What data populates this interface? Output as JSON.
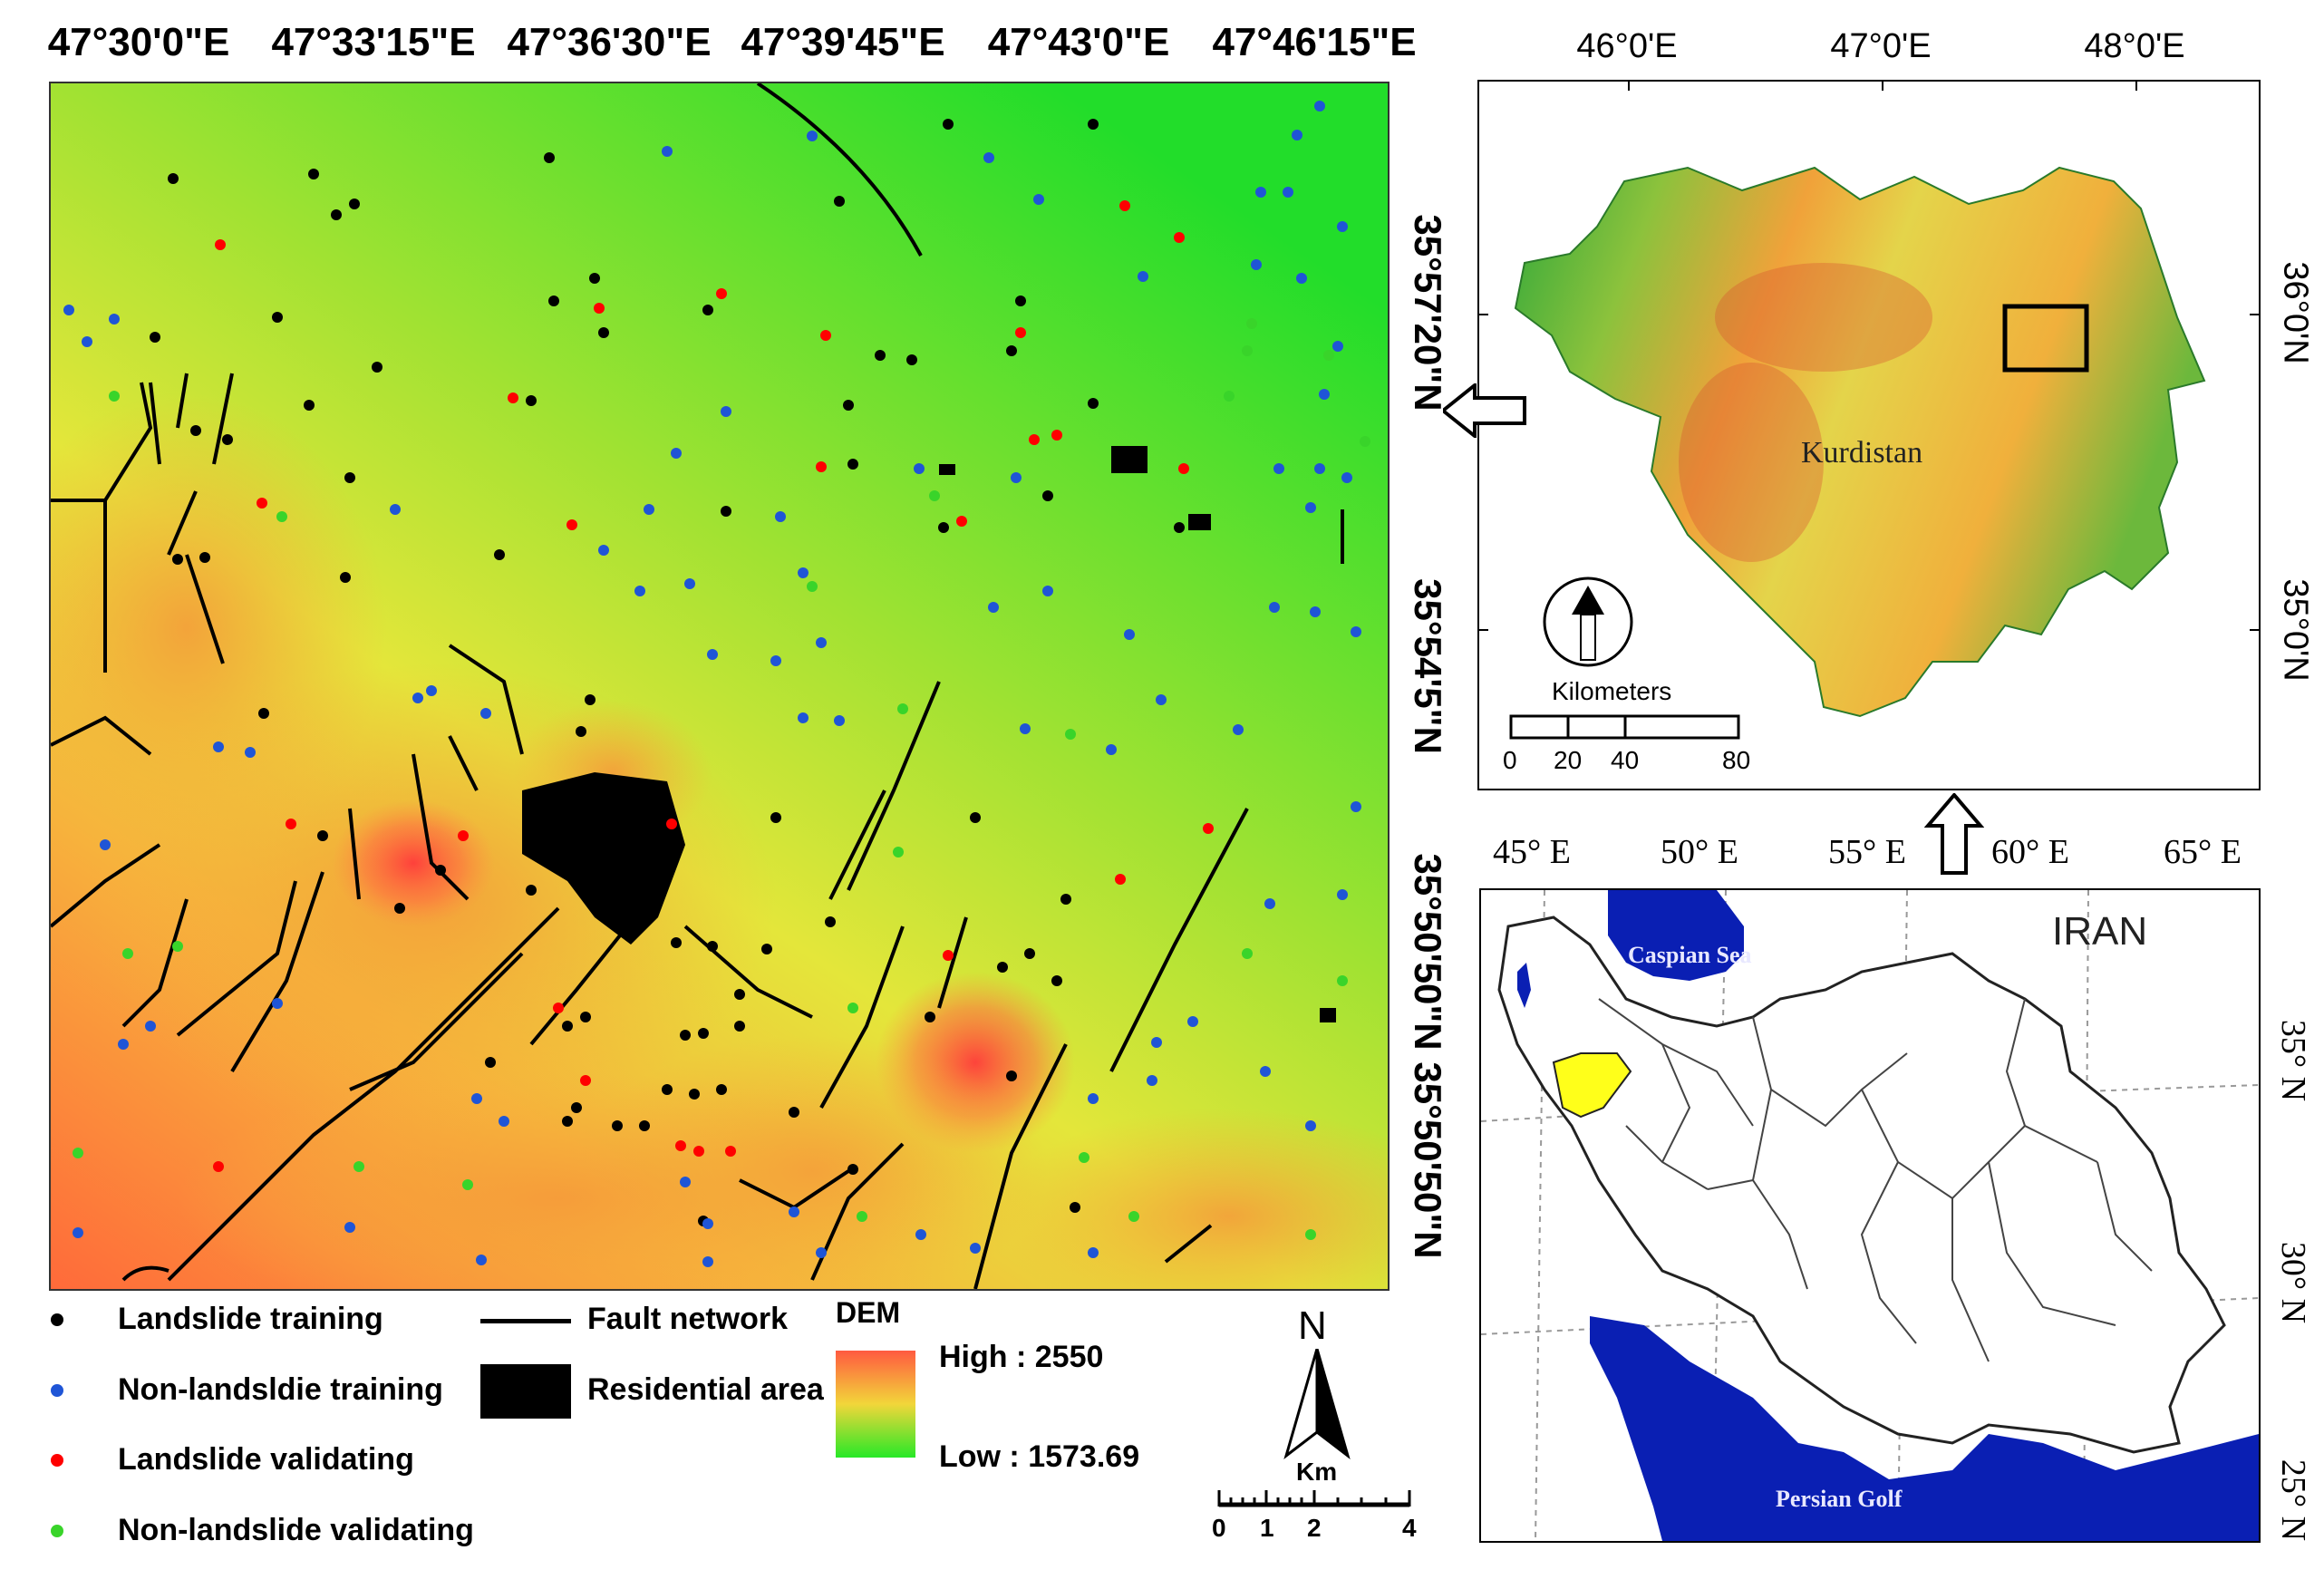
{
  "main_map": {
    "lon_labels": [
      "47°30'0\"E",
      "47°33'15\"E",
      "47°36'30\"E",
      "47°39'45\"E",
      "47°43'0\"E",
      "47°46'15\"E"
    ],
    "lat_labels": [
      "35°57'20\"N",
      "35°54'5\"N",
      "35°50'50\"N",
      "35°50'50\"N"
    ],
    "colors": {
      "high": "#ff4a3a",
      "mid": "#e8e63a",
      "low": "#1ee01e",
      "fault": "#000000",
      "residential": "#000000"
    }
  },
  "legend": {
    "items": [
      {
        "label": "Landslide training",
        "color": "#000000"
      },
      {
        "label": "Non-landsldie training",
        "color": "#1f55d6"
      },
      {
        "label": "Landslide validating",
        "color": "#ff0000"
      },
      {
        "label": "Non-landslide validating",
        "color": "#39d42a"
      }
    ],
    "fault_label": "Fault network",
    "residential_label": "Residential area",
    "dem_title": "DEM",
    "dem_high": "High : 2550",
    "dem_low": "Low : 1573.69"
  },
  "north_arrow": {
    "label": "N"
  },
  "scale_bar": {
    "unit": "Km",
    "ticks": [
      "0",
      "1",
      "2",
      "4"
    ]
  },
  "kurdistan_inset": {
    "lon_labels": [
      "46°0'E",
      "47°0'E",
      "48°0'E"
    ],
    "lat_labels": [
      "36°0'N",
      "35°0'N"
    ],
    "region_label": "Kurdistan",
    "scale_title": "Kilometers",
    "scale_ticks": [
      "0",
      "20",
      "40",
      "80"
    ]
  },
  "iran_inset": {
    "lon_labels": [
      "45° E",
      "50° E",
      "55° E",
      "60° E",
      "65° E"
    ],
    "lat_labels": [
      "35° N",
      "30° N",
      "25° N"
    ],
    "country_label": "IRAN",
    "caspian_label": "Caspian Sea",
    "gulf_label": "Persian Golf",
    "colors": {
      "water": "#0a1fb3",
      "province": "#ffff1a"
    }
  }
}
